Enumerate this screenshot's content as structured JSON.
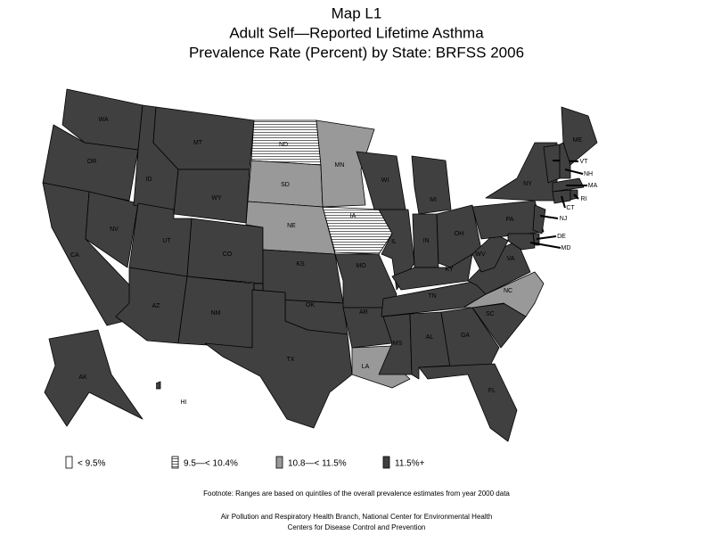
{
  "title_lines": [
    "Map L1",
    "Adult Self—Reported Lifetime Asthma",
    "Prevalence Rate (Percent) by State: BRFSS 2006"
  ],
  "legend": [
    {
      "label": "< 9.5%",
      "color": "#ffffff"
    },
    {
      "label": "9.5—< 10.4%",
      "color": "#ffffff",
      "pattern": "horizontal-lines"
    },
    {
      "label": "10.8—< 11.5%",
      "color": "#999999"
    },
    {
      "label": "11.5%+",
      "color": "#404040"
    }
  ],
  "states": [
    {
      "label": "WA",
      "legend": 3
    },
    {
      "label": "OR",
      "legend": 3
    },
    {
      "label": "CA",
      "legend": 3
    },
    {
      "label": "NV",
      "legend": 3
    },
    {
      "label": "ID",
      "legend": 3
    },
    {
      "label": "MT",
      "legend": 3
    },
    {
      "label": "WY",
      "legend": 3
    },
    {
      "label": "UT",
      "legend": 3
    },
    {
      "label": "CO",
      "legend": 3
    },
    {
      "label": "AZ",
      "legend": 3
    },
    {
      "label": "NM",
      "legend": 3
    },
    {
      "label": "ND",
      "legend": 1
    },
    {
      "label": "SD",
      "legend": 2
    },
    {
      "label": "NE",
      "legend": 2
    },
    {
      "label": "KS",
      "legend": 3
    },
    {
      "label": "OK",
      "legend": 3
    },
    {
      "label": "TX",
      "legend": 3
    },
    {
      "label": "MN",
      "legend": 2
    },
    {
      "label": "IA",
      "legend": 1
    },
    {
      "label": "MO",
      "legend": 3
    },
    {
      "label": "AR",
      "legend": 3
    },
    {
      "label": "LA",
      "legend": 2
    },
    {
      "label": "WI",
      "legend": 3
    },
    {
      "label": "IL",
      "legend": 3
    },
    {
      "label": "MI",
      "legend": 3
    },
    {
      "label": "IN",
      "legend": 3
    },
    {
      "label": "OH",
      "legend": 3
    },
    {
      "label": "KY",
      "legend": 3
    },
    {
      "label": "TN",
      "legend": 3
    },
    {
      "label": "MS",
      "legend": 3
    },
    {
      "label": "AL",
      "legend": 3
    },
    {
      "label": "GA",
      "legend": 3
    },
    {
      "label": "FL",
      "legend": 3
    },
    {
      "label": "SC",
      "legend": 3
    },
    {
      "label": "NC",
      "legend": 2
    },
    {
      "label": "VA",
      "legend": 3
    },
    {
      "label": "WV",
      "legend": 3
    },
    {
      "label": "PA",
      "legend": 3
    },
    {
      "label": "NY",
      "legend": 3
    },
    {
      "label": "ME",
      "legend": 3
    },
    {
      "label": "VT",
      "legend": 3
    },
    {
      "label": "NH",
      "legend": 3
    },
    {
      "label": "MA",
      "legend": 3
    },
    {
      "label": "CT",
      "legend": 3
    },
    {
      "label": "RI",
      "legend": 3
    },
    {
      "label": "NJ",
      "legend": 3
    },
    {
      "label": "DE",
      "legend": 3
    },
    {
      "label": "MD",
      "legend": 3
    },
    {
      "label": "AK",
      "legend": 3
    },
    {
      "label": "HI",
      "legend": 3
    }
  ],
  "footnote": "Footnote: Ranges are based on quintiles of the overall prevalence estimates from year 2000 data",
  "credits": [
    "Air Pollution and Respiratory Health Branch, National Center for Environmental Health",
    "Centers for Disease Control and Prevention"
  ]
}
